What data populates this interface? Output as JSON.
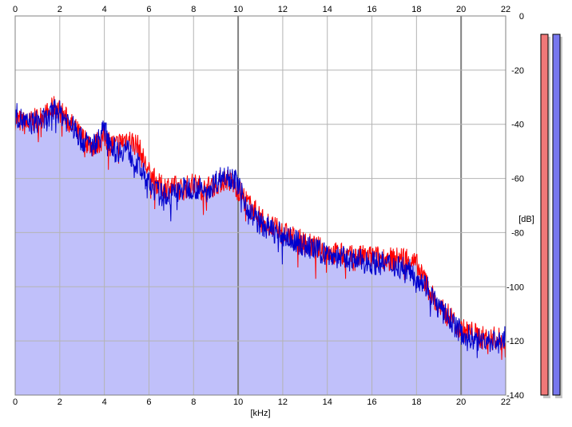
{
  "chart_data": {
    "type": "area",
    "xlabel": "[kHz]",
    "ylabel": "[dB]",
    "xlim": [
      0,
      22
    ],
    "ylim": [
      -140,
      0
    ],
    "x_ticks": [
      "0",
      "2",
      "4",
      "6",
      "8",
      "10",
      "12",
      "14",
      "16",
      "18",
      "20",
      "22"
    ],
    "y_ticks": [
      "0",
      "-20",
      "-40",
      "-60",
      "-80",
      "-100",
      "-120",
      "-140"
    ],
    "grid": true,
    "x_ticks_top": true,
    "series": [
      {
        "color": "#ff0000",
        "x": [
          0,
          0.5,
          1,
          1.5,
          1.8,
          2.5,
          3,
          3.5,
          4,
          4.5,
          5,
          5.5,
          6,
          6.5,
          7,
          7.5,
          8,
          8.5,
          9,
          9.5,
          10,
          10.5,
          11,
          11.5,
          12,
          13,
          14,
          15,
          16,
          17,
          17.5,
          18,
          18.5,
          19,
          19.5,
          20,
          20.5,
          21,
          21.5,
          22
        ],
        "values": [
          -38,
          -40,
          -38,
          -36,
          -33,
          -40,
          -45,
          -48,
          -45,
          -48,
          -45,
          -48,
          -58,
          -63,
          -63,
          -64,
          -62,
          -64,
          -62,
          -60,
          -64,
          -70,
          -74,
          -78,
          -80,
          -84,
          -87,
          -89,
          -89,
          -90,
          -89,
          -92,
          -100,
          -108,
          -111,
          -116,
          -117,
          -119,
          -119,
          -120
        ]
      },
      {
        "color": "#0000cc",
        "x": [
          0,
          0.5,
          1,
          1.5,
          1.8,
          2.5,
          3,
          3.5,
          4,
          4.5,
          5,
          5.5,
          6,
          6.5,
          7,
          7.5,
          8,
          8.5,
          9,
          9.5,
          10,
          10.5,
          11,
          11.5,
          12,
          13,
          14,
          15,
          16,
          17,
          17.5,
          18,
          18.5,
          19,
          19.5,
          20,
          20.5,
          21,
          21.5,
          22
        ],
        "values": [
          -36,
          -40,
          -39,
          -38,
          -34,
          -40,
          -46,
          -48,
          -42,
          -50,
          -49,
          -55,
          -62,
          -66,
          -66,
          -64,
          -63,
          -65,
          -61,
          -58,
          -62,
          -72,
          -77,
          -79,
          -81,
          -85,
          -88,
          -90,
          -91,
          -92,
          -93,
          -96,
          -100,
          -108,
          -112,
          -117,
          -119,
          -120,
          -120,
          -119
        ]
      }
    ],
    "fill_color": "#c0c0fa",
    "meters": [
      {
        "color": "#f07878"
      },
      {
        "color": "#7777ee"
      }
    ]
  }
}
